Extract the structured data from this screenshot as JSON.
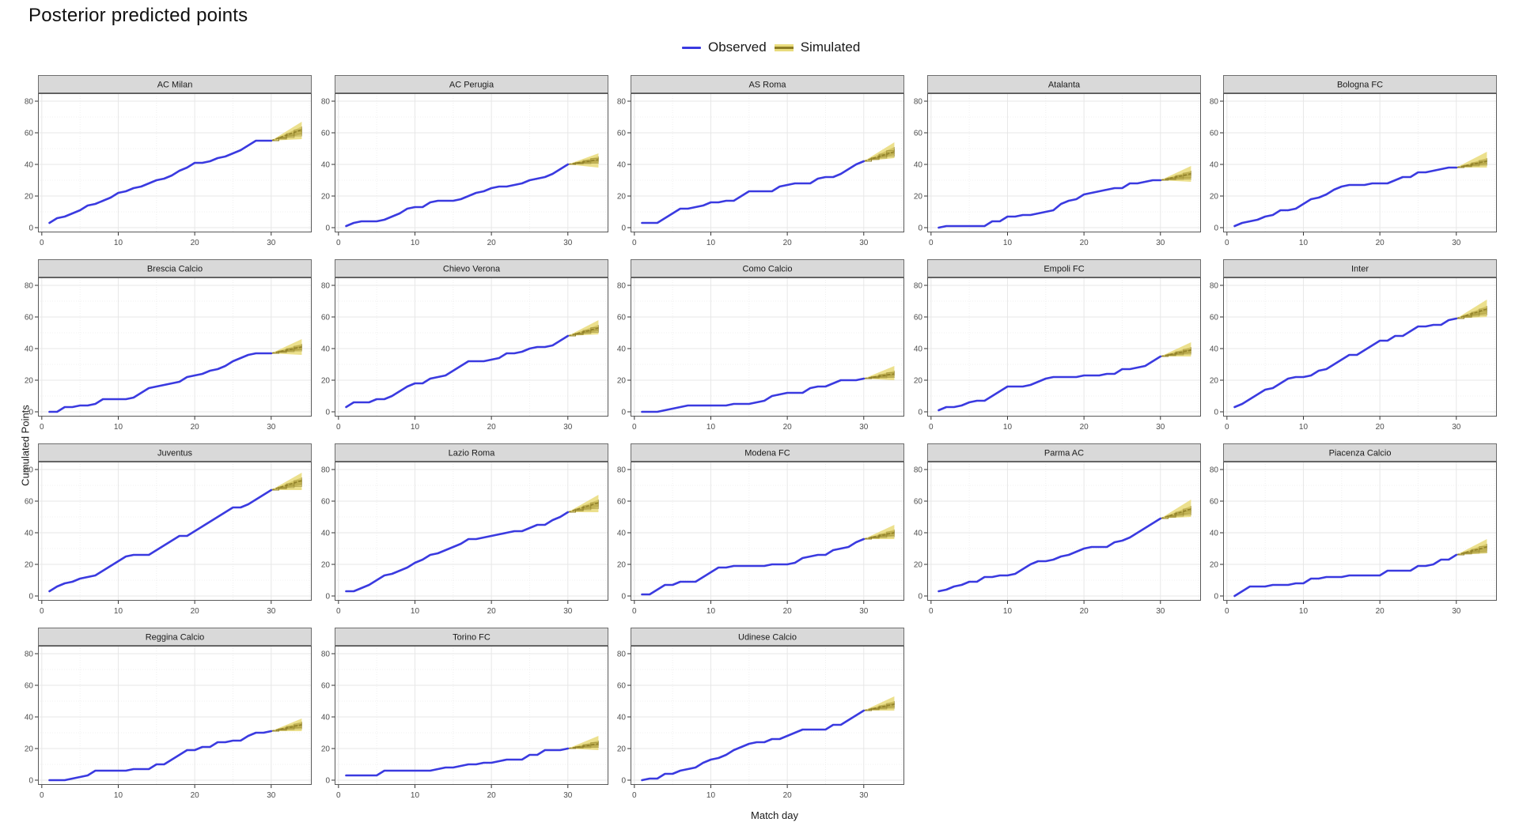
{
  "title": "Posterior predicted points",
  "legend": {
    "observed_label": "Observed",
    "simulated_label": "Simulated"
  },
  "axes": {
    "x_label": "Match day",
    "y_label": "Cumulated Points",
    "x_ticks": [
      0,
      10,
      20,
      30
    ],
    "y_ticks": [
      0,
      20,
      40,
      60,
      80
    ],
    "x_minor": [
      5,
      15,
      25,
      35
    ],
    "y_minor": [
      10,
      30,
      50,
      70
    ]
  },
  "colors": {
    "observed": "#3a3ae0",
    "sim_outer": "#e9dc7d",
    "sim_inner": "#cdbd5a",
    "sim_line": "#8d7d26",
    "strip_bg": "#d9d9d9",
    "strip_border": "#6e6e6e",
    "panel_border": "#595959",
    "grid_major": "#e7e7e7",
    "grid_minor": "#f0f0f0",
    "axis_text": "#4d4d4d",
    "title_text": "#111111"
  },
  "chart_data": {
    "type": "line",
    "title": "Posterior predicted points",
    "xlabel": "Match day",
    "ylabel": "Cumulated Points",
    "x_range": [
      -0.5,
      35.3
    ],
    "y_range": [
      -3,
      84.5
    ],
    "observed_days": "1-30",
    "simulated_days": "30-34",
    "facets": [
      {
        "team": "AC Milan",
        "observed": [
          3,
          6,
          7,
          9,
          11,
          14,
          15,
          17,
          19,
          22,
          23,
          25,
          26,
          28,
          30,
          31,
          33,
          36,
          38,
          41,
          41,
          42,
          44,
          45,
          47,
          49,
          52,
          55,
          55,
          55
        ],
        "sim": {
          "outer_low": 56,
          "outer_high": 67,
          "inner_low": 59,
          "inner_high": 64,
          "median": 62
        }
      },
      {
        "team": "AC Perugia",
        "observed": [
          1,
          3,
          4,
          4,
          4,
          5,
          7,
          9,
          12,
          13,
          13,
          16,
          17,
          17,
          17,
          18,
          20,
          22,
          23,
          25,
          26,
          26,
          27,
          28,
          30,
          31,
          32,
          34,
          37,
          40
        ],
        "sim": {
          "outer_low": 38,
          "outer_high": 47,
          "inner_low": 41,
          "inner_high": 45,
          "median": 43
        }
      },
      {
        "team": "AS Roma",
        "observed": [
          3,
          3,
          3,
          6,
          9,
          12,
          12,
          13,
          14,
          16,
          16,
          17,
          17,
          20,
          23,
          23,
          23,
          23,
          26,
          27,
          28,
          28,
          28,
          31,
          32,
          32,
          34,
          37,
          40,
          42
        ],
        "sim": {
          "outer_low": 44,
          "outer_high": 54,
          "inner_low": 46,
          "inner_high": 51,
          "median": 48
        }
      },
      {
        "team": "Atalanta",
        "observed": [
          0,
          1,
          1,
          1,
          1,
          1,
          1,
          4,
          4,
          7,
          7,
          8,
          8,
          9,
          10,
          11,
          15,
          17,
          18,
          21,
          22,
          23,
          24,
          25,
          25,
          28,
          28,
          29,
          30,
          30
        ],
        "sim": {
          "outer_low": 29,
          "outer_high": 39,
          "inner_low": 31,
          "inner_high": 36,
          "median": 34
        }
      },
      {
        "team": "Bologna FC",
        "observed": [
          1,
          3,
          4,
          5,
          7,
          8,
          11,
          11,
          12,
          15,
          18,
          19,
          21,
          24,
          26,
          27,
          27,
          27,
          28,
          28,
          28,
          30,
          32,
          32,
          35,
          35,
          36,
          37,
          38,
          38
        ],
        "sim": {
          "outer_low": 38,
          "outer_high": 48,
          "inner_low": 40,
          "inner_high": 44,
          "median": 42
        }
      },
      {
        "team": "Brescia Calcio",
        "observed": [
          0,
          0,
          3,
          3,
          4,
          4,
          5,
          8,
          8,
          8,
          8,
          9,
          12,
          15,
          16,
          17,
          18,
          19,
          22,
          23,
          24,
          26,
          27,
          29,
          32,
          34,
          36,
          37,
          37,
          37
        ],
        "sim": {
          "outer_low": 36,
          "outer_high": 46,
          "inner_low": 39,
          "inner_high": 43,
          "median": 41
        }
      },
      {
        "team": "Chievo Verona",
        "observed": [
          3,
          6,
          6,
          6,
          8,
          8,
          10,
          13,
          16,
          18,
          18,
          21,
          22,
          23,
          26,
          29,
          32,
          32,
          32,
          33,
          34,
          37,
          37,
          38,
          40,
          41,
          41,
          42,
          45,
          48
        ],
        "sim": {
          "outer_low": 49,
          "outer_high": 58,
          "inner_low": 51,
          "inner_high": 55,
          "median": 53
        }
      },
      {
        "team": "Como Calcio",
        "observed": [
          0,
          0,
          0,
          1,
          2,
          3,
          4,
          4,
          4,
          4,
          4,
          4,
          5,
          5,
          5,
          6,
          7,
          10,
          11,
          12,
          12,
          12,
          15,
          16,
          16,
          18,
          20,
          20,
          20,
          21
        ],
        "sim": {
          "outer_low": 20,
          "outer_high": 29,
          "inner_low": 22,
          "inner_high": 26,
          "median": 24
        }
      },
      {
        "team": "Empoli FC",
        "observed": [
          1,
          3,
          3,
          4,
          6,
          7,
          7,
          10,
          13,
          16,
          16,
          16,
          17,
          19,
          21,
          22,
          22,
          22,
          22,
          23,
          23,
          23,
          24,
          24,
          27,
          27,
          28,
          29,
          32,
          35
        ],
        "sim": {
          "outer_low": 35,
          "outer_high": 44,
          "inner_low": 37,
          "inner_high": 41,
          "median": 39
        }
      },
      {
        "team": "Inter",
        "observed": [
          3,
          5,
          8,
          11,
          14,
          15,
          18,
          21,
          22,
          22,
          23,
          26,
          27,
          30,
          33,
          36,
          36,
          39,
          42,
          45,
          45,
          48,
          48,
          51,
          54,
          54,
          55,
          55,
          58,
          59
        ],
        "sim": {
          "outer_low": 60,
          "outer_high": 71,
          "inner_low": 62,
          "inner_high": 67,
          "median": 65
        }
      },
      {
        "team": "Juventus",
        "observed": [
          3,
          6,
          8,
          9,
          11,
          12,
          13,
          16,
          19,
          22,
          25,
          26,
          26,
          26,
          29,
          32,
          35,
          38,
          38,
          41,
          44,
          47,
          50,
          53,
          56,
          56,
          58,
          61,
          64,
          67
        ],
        "sim": {
          "outer_low": 67,
          "outer_high": 78,
          "inner_low": 70,
          "inner_high": 75,
          "median": 73
        }
      },
      {
        "team": "Lazio Roma",
        "observed": [
          3,
          3,
          5,
          7,
          10,
          13,
          14,
          16,
          18,
          21,
          23,
          26,
          27,
          29,
          31,
          33,
          36,
          36,
          37,
          38,
          39,
          40,
          41,
          41,
          43,
          45,
          45,
          48,
          50,
          53
        ],
        "sim": {
          "outer_low": 53,
          "outer_high": 64,
          "inner_low": 56,
          "inner_high": 61,
          "median": 59
        }
      },
      {
        "team": "Modena FC",
        "observed": [
          1,
          1,
          4,
          7,
          7,
          9,
          9,
          9,
          12,
          15,
          18,
          18,
          19,
          19,
          19,
          19,
          19,
          20,
          20,
          20,
          21,
          24,
          25,
          26,
          26,
          29,
          30,
          31,
          34,
          36
        ],
        "sim": {
          "outer_low": 36,
          "outer_high": 45,
          "inner_low": 38,
          "inner_high": 42,
          "median": 40
        }
      },
      {
        "team": "Parma AC",
        "observed": [
          3,
          4,
          6,
          7,
          9,
          9,
          12,
          12,
          13,
          13,
          14,
          17,
          20,
          22,
          22,
          23,
          25,
          26,
          28,
          30,
          31,
          31,
          31,
          34,
          35,
          37,
          40,
          43,
          46,
          49
        ],
        "sim": {
          "outer_low": 50,
          "outer_high": 61,
          "inner_low": 52,
          "inner_high": 57,
          "median": 55
        }
      },
      {
        "team": "Piacenza Calcio",
        "observed": [
          0,
          3,
          6,
          6,
          6,
          7,
          7,
          7,
          8,
          8,
          11,
          11,
          12,
          12,
          12,
          13,
          13,
          13,
          13,
          13,
          16,
          16,
          16,
          16,
          19,
          19,
          20,
          23,
          23,
          26
        ],
        "sim": {
          "outer_low": 27,
          "outer_high": 36,
          "inner_low": 28,
          "inner_high": 33,
          "median": 31
        }
      },
      {
        "team": "Reggina Calcio",
        "observed": [
          0,
          0,
          0,
          1,
          2,
          3,
          6,
          6,
          6,
          6,
          6,
          7,
          7,
          7,
          10,
          10,
          13,
          16,
          19,
          19,
          21,
          21,
          24,
          24,
          25,
          25,
          28,
          30,
          30,
          31
        ],
        "sim": {
          "outer_low": 31,
          "outer_high": 39,
          "inner_low": 33,
          "inner_high": 37,
          "median": 35
        }
      },
      {
        "team": "Torino FC",
        "observed": [
          3,
          3,
          3,
          3,
          3,
          6,
          6,
          6,
          6,
          6,
          6,
          6,
          7,
          8,
          8,
          9,
          10,
          10,
          11,
          11,
          12,
          13,
          13,
          13,
          16,
          16,
          19,
          19,
          19,
          20
        ],
        "sim": {
          "outer_low": 19,
          "outer_high": 28,
          "inner_low": 21,
          "inner_high": 25,
          "median": 23
        }
      },
      {
        "team": "Udinese Calcio",
        "observed": [
          0,
          1,
          1,
          4,
          4,
          6,
          7,
          8,
          11,
          13,
          14,
          16,
          19,
          21,
          23,
          24,
          24,
          26,
          26,
          28,
          30,
          32,
          32,
          32,
          32,
          35,
          35,
          38,
          41,
          44
        ],
        "sim": {
          "outer_low": 44,
          "outer_high": 53,
          "inner_low": 46,
          "inner_high": 50,
          "median": 48
        }
      }
    ]
  },
  "layout_hints": {
    "grid": "5 columns x 4 rows",
    "legend_position": "top center",
    "facet_last_row_count": 3
  }
}
